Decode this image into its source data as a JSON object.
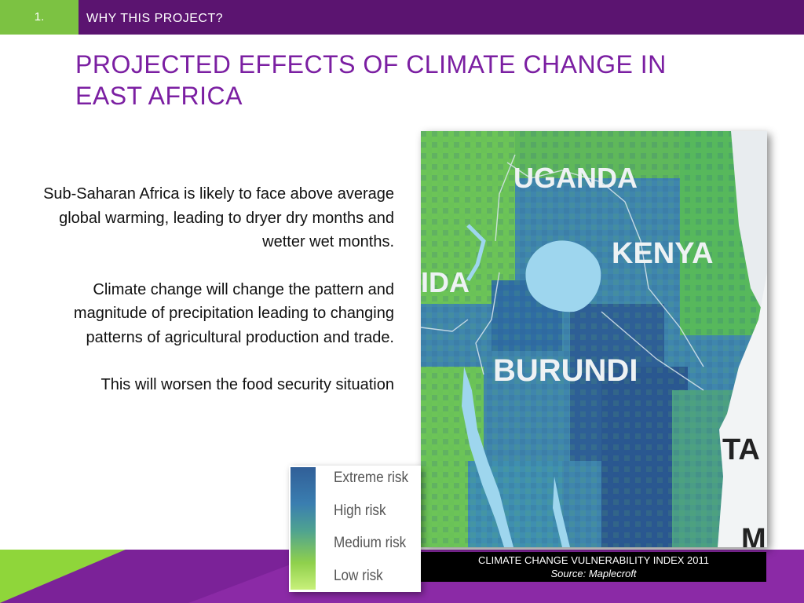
{
  "header": {
    "number": "1.",
    "section": "WHY THIS PROJECT?"
  },
  "title": "PROJECTED EFFECTS OF CLIMATE CHANGE IN EAST AFRICA",
  "paragraphs": [
    "Sub-Saharan Africa is likely to face above average global warming, leading to dryer dry months and wetter wet months.",
    "Climate change will change the pattern and magnitude of precipitation leading to changing patterns of agricultural production and trade.",
    "This will worsen the food security situation"
  ],
  "map": {
    "labels": {
      "uganda": "UGANDA",
      "kenya": "KENYA",
      "rwanda_partial": "IDA",
      "burundi": "BURUNDI",
      "tanzania_partial": "TA",
      "m_partial": "M"
    }
  },
  "legend": {
    "items": [
      "Extreme risk",
      "High risk",
      "Medium risk",
      "Low risk"
    ],
    "colors": [
      "#315f98",
      "#3a7eb0",
      "#4fa390",
      "#8fd04c",
      "#c8f07a"
    ]
  },
  "caption": {
    "title": "CLIMATE CHANGE VULNERABILITY INDEX 2011",
    "source": "Source: Maplecroft"
  },
  "colors": {
    "header": "#5b1470",
    "accent_green": "#7cc242",
    "title": "#7b1fa2",
    "bottom": "#8b2aa6"
  }
}
